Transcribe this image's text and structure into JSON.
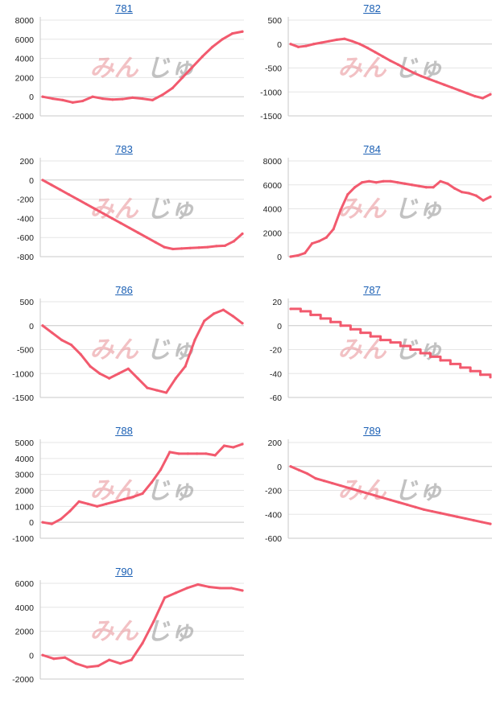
{
  "watermark": {
    "part1": "みん",
    "part2": "じゅ"
  },
  "colors": {
    "line": "#f25a6e",
    "title": "#1a5fb4"
  },
  "chart_data": [
    {
      "type": "line",
      "title": "781",
      "yticks": [
        8000,
        6000,
        4000,
        2000,
        0,
        -2000
      ],
      "ylim": [
        -2000,
        8000
      ],
      "values": [
        0,
        -200,
        -350,
        -600,
        -450,
        0,
        -200,
        -300,
        -250,
        -100,
        -200,
        -350,
        200,
        900,
        2000,
        3100,
        4200,
        5200,
        6000,
        6600,
        6800
      ]
    },
    {
      "type": "line",
      "title": "782",
      "yticks": [
        500,
        0,
        -500,
        -1000,
        -1500
      ],
      "ylim": [
        -1500,
        500
      ],
      "values": [
        0,
        -60,
        -40,
        0,
        30,
        60,
        90,
        110,
        60,
        0,
        -80,
        -170,
        -260,
        -350,
        -430,
        -520,
        -600,
        -670,
        -730,
        -790,
        -850,
        -910,
        -970,
        -1030,
        -1090,
        -1130,
        -1050
      ]
    },
    {
      "type": "line",
      "title": "783",
      "yticks": [
        200,
        0,
        -200,
        -400,
        -600,
        -800
      ],
      "ylim": [
        -800,
        200
      ],
      "values": [
        0,
        -50,
        -100,
        -150,
        -200,
        -250,
        -300,
        -350,
        -400,
        -450,
        -500,
        -550,
        -600,
        -650,
        -700,
        -720,
        -715,
        -710,
        -705,
        -700,
        -690,
        -685,
        -640,
        -560
      ]
    },
    {
      "type": "line",
      "title": "784",
      "yticks": [
        8000,
        6000,
        4000,
        2000,
        0
      ],
      "ylim": [
        0,
        8000
      ],
      "values": [
        0,
        100,
        300,
        1100,
        1300,
        1600,
        2300,
        3900,
        5200,
        5800,
        6200,
        6300,
        6200,
        6300,
        6300,
        6200,
        6100,
        6000,
        5900,
        5800,
        5800,
        6300,
        6100,
        5700,
        5400,
        5300,
        5100,
        4700,
        5000
      ]
    },
    {
      "type": "line",
      "title": "786",
      "yticks": [
        500,
        0,
        -500,
        -1000,
        -1500
      ],
      "ylim": [
        -1500,
        500
      ],
      "values": [
        0,
        -150,
        -300,
        -400,
        -600,
        -850,
        -1000,
        -1100,
        -1000,
        -900,
        -1100,
        -1300,
        -1350,
        -1400,
        -1100,
        -850,
        -300,
        100,
        250,
        330,
        200,
        50
      ]
    },
    {
      "type": "line",
      "title": "787",
      "yticks": [
        20,
        0,
        -20,
        -40,
        -60
      ],
      "ylim": [
        -60,
        20
      ],
      "step": true,
      "values": [
        14,
        12,
        9,
        6,
        3,
        0,
        -3,
        -6,
        -9,
        -12,
        -14,
        -17,
        -20,
        -23,
        -26,
        -29,
        -32,
        -35,
        -38,
        -41,
        -43
      ]
    },
    {
      "type": "line",
      "title": "788",
      "yticks": [
        5000,
        4000,
        3000,
        2000,
        1000,
        0,
        -1000
      ],
      "ylim": [
        -1000,
        5000
      ],
      "values": [
        0,
        -100,
        200,
        700,
        1300,
        1150,
        1000,
        1150,
        1300,
        1450,
        1600,
        1800,
        2500,
        3300,
        4400,
        4300,
        4300,
        4300,
        4300,
        4200,
        4800,
        4700,
        4900
      ]
    },
    {
      "type": "line",
      "title": "789",
      "yticks": [
        200,
        0,
        -200,
        -400,
        -600
      ],
      "ylim": [
        -600,
        200
      ],
      "values": [
        0,
        -30,
        -60,
        -100,
        -120,
        -140,
        -160,
        -180,
        -200,
        -220,
        -240,
        -260,
        -280,
        -300,
        -320,
        -340,
        -360,
        -375,
        -390,
        -405,
        -420,
        -435,
        -450,
        -465,
        -480
      ]
    },
    {
      "type": "line",
      "title": "790",
      "yticks": [
        6000,
        4000,
        2000,
        0,
        -2000
      ],
      "ylim": [
        -2000,
        6000
      ],
      "values": [
        0,
        -300,
        -200,
        -700,
        -1000,
        -900,
        -400,
        -700,
        -400,
        1000,
        2800,
        4800,
        5200,
        5600,
        5900,
        5700,
        5600,
        5600,
        5400
      ]
    }
  ]
}
